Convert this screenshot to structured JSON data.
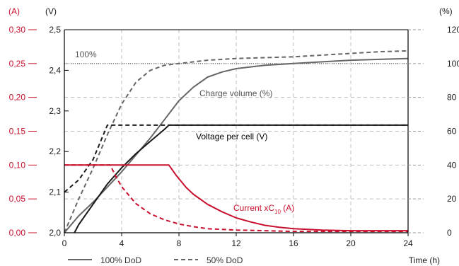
{
  "chart_data": {
    "type": "line",
    "x": [
      0,
      1,
      2,
      3,
      4,
      5,
      6,
      7,
      7.3,
      8,
      9,
      10,
      11,
      12,
      13,
      14,
      15,
      16,
      17,
      18,
      19,
      20,
      21,
      22,
      23,
      24
    ],
    "xlabel": "Time (h)",
    "xlim": [
      0,
      24
    ],
    "xticks": [
      0,
      4,
      8,
      12,
      16,
      20,
      24
    ],
    "axes": {
      "left_current": {
        "unit": "(A)",
        "range": [
          0,
          0.3
        ],
        "ticks": [
          "0,00",
          "0,05",
          "0,10",
          "0,15",
          "0,20",
          "0,25",
          "0,30"
        ],
        "color": "#c8102e"
      },
      "left_voltage": {
        "unit": "(V)",
        "range": [
          2.0,
          2.5
        ],
        "ticks": [
          "2,0",
          "2,1",
          "2,2",
          "2,3",
          "2,4",
          "2,5"
        ],
        "color": "#1a1a1a"
      },
      "right_percent": {
        "unit": "(%)",
        "range": [
          0,
          120
        ],
        "ticks": [
          "0",
          "20",
          "40",
          "60",
          "80",
          "100",
          "120"
        ],
        "color": "#1a1a1a"
      }
    },
    "reference_line": {
      "label": "100%",
      "percent": 100
    },
    "annotations": {
      "charge": "Charge volume (%)",
      "voltage": "Voltage per cell (V)",
      "current_prefix": "Current  xC",
      "current_sub": "10",
      "current_suffix": " (A)"
    },
    "legend": [
      {
        "label": "100% DoD",
        "style": "solid"
      },
      {
        "label": "50% DoD",
        "style": "dashed"
      }
    ],
    "series": [
      {
        "name": "Charge volume (%) 100% DoD",
        "axis": "percent",
        "dash": false,
        "color": "#666666",
        "points": [
          [
            0,
            0
          ],
          [
            1,
            10
          ],
          [
            2,
            18
          ],
          [
            3,
            27
          ],
          [
            4,
            36
          ],
          [
            5,
            46
          ],
          [
            6,
            56
          ],
          [
            7,
            67
          ],
          [
            8,
            78
          ],
          [
            9,
            86
          ],
          [
            10,
            92
          ],
          [
            11,
            95
          ],
          [
            12,
            97
          ],
          [
            14,
            99
          ],
          [
            16,
            100
          ],
          [
            18,
            101
          ],
          [
            20,
            102
          ],
          [
            22,
            102.5
          ],
          [
            24,
            103
          ]
        ]
      },
      {
        "name": "Charge volume (%) 50% DoD",
        "axis": "percent",
        "dash": true,
        "color": "#666666",
        "points": [
          [
            0,
            0
          ],
          [
            1,
            20
          ],
          [
            2,
            38
          ],
          [
            3,
            58
          ],
          [
            4,
            76
          ],
          [
            5,
            89
          ],
          [
            6,
            96
          ],
          [
            7,
            99
          ],
          [
            8,
            100
          ],
          [
            10,
            102
          ],
          [
            12,
            103
          ],
          [
            14,
            103.5
          ],
          [
            16,
            104
          ],
          [
            18,
            105
          ],
          [
            20,
            106
          ],
          [
            22,
            107
          ],
          [
            24,
            107.5
          ]
        ]
      },
      {
        "name": "Voltage per cell (V) 100% DoD",
        "axis": "voltage",
        "dash": false,
        "color": "#1a1a1a",
        "points": [
          [
            0.7,
            2.0
          ],
          [
            1,
            2.02
          ],
          [
            2,
            2.07
          ],
          [
            3,
            2.12
          ],
          [
            4,
            2.16
          ],
          [
            5,
            2.195
          ],
          [
            6,
            2.225
          ],
          [
            7,
            2.255
          ],
          [
            7.3,
            2.265
          ],
          [
            8,
            2.265
          ],
          [
            12,
            2.265
          ],
          [
            16,
            2.265
          ],
          [
            20,
            2.265
          ],
          [
            24,
            2.265
          ]
        ]
      },
      {
        "name": "Voltage per cell (V) 50% DoD",
        "axis": "voltage",
        "dash": true,
        "color": "#1a1a1a",
        "points": [
          [
            0,
            2.1
          ],
          [
            1,
            2.13
          ],
          [
            2,
            2.18
          ],
          [
            3,
            2.265
          ],
          [
            3.2,
            2.265
          ],
          [
            4,
            2.265
          ],
          [
            8,
            2.265
          ],
          [
            12,
            2.265
          ],
          [
            16,
            2.265
          ],
          [
            20,
            2.265
          ],
          [
            24,
            2.265
          ]
        ]
      },
      {
        "name": "Current xC10 (A) 100% DoD",
        "axis": "current",
        "dash": false,
        "color": "#c8102e",
        "points": [
          [
            0,
            0.1
          ],
          [
            4,
            0.1
          ],
          [
            7.3,
            0.1
          ],
          [
            7.8,
            0.085
          ],
          [
            8.5,
            0.067
          ],
          [
            9,
            0.057
          ],
          [
            10,
            0.042
          ],
          [
            11,
            0.031
          ],
          [
            12,
            0.022
          ],
          [
            13,
            0.016
          ],
          [
            14,
            0.011
          ],
          [
            15,
            0.008
          ],
          [
            16,
            0.006
          ],
          [
            17,
            0.005
          ],
          [
            18,
            0.004
          ],
          [
            20,
            0.003
          ],
          [
            22,
            0.003
          ],
          [
            24,
            0.003
          ]
        ]
      },
      {
        "name": "Current xC10 (A) 50% DoD",
        "axis": "current",
        "dash": true,
        "color": "#c8102e",
        "points": [
          [
            0,
            0.1
          ],
          [
            3.2,
            0.1
          ],
          [
            3.6,
            0.083
          ],
          [
            4,
            0.068
          ],
          [
            5,
            0.043
          ],
          [
            6,
            0.028
          ],
          [
            7,
            0.019
          ],
          [
            8,
            0.013
          ],
          [
            9,
            0.009
          ],
          [
            10,
            0.006
          ],
          [
            12,
            0.004
          ],
          [
            14,
            0.003
          ],
          [
            16,
            0.002
          ],
          [
            20,
            0.002
          ],
          [
            24,
            0.002
          ]
        ]
      }
    ]
  }
}
